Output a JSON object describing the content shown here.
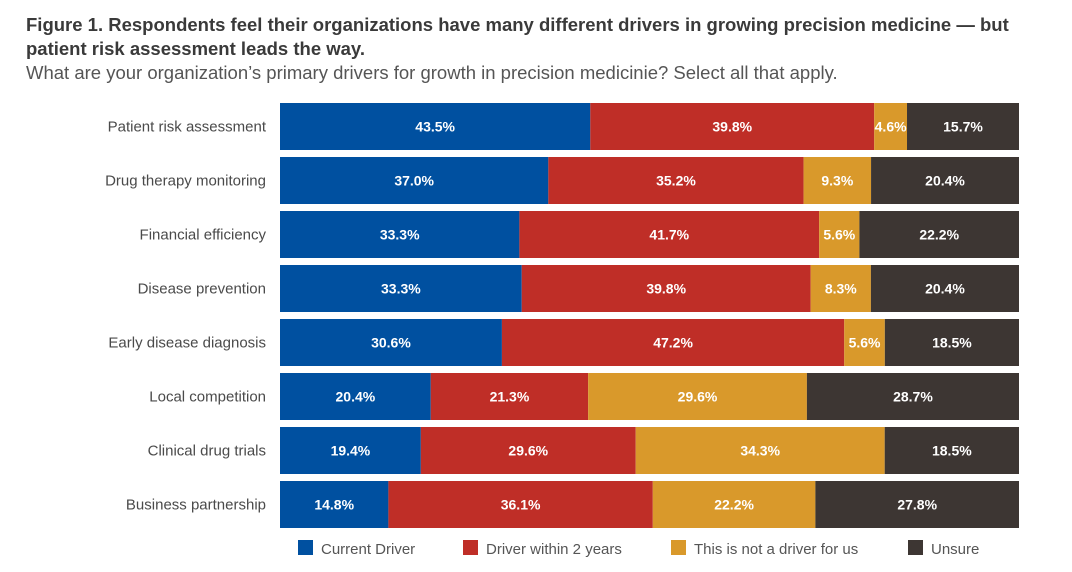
{
  "chart_data": {
    "type": "bar",
    "orientation": "horizontal",
    "stacked": true,
    "title": "Figure 1. Respondents feel their organizations have many different drivers in growing precision medicine — but patient risk assessment leads the way.",
    "subtitle": "What are your organization’s primary drivers for growth in precision medicinie? Select all that apply.",
    "xlabel": "",
    "ylabel": "",
    "xlim": [
      0,
      100
    ],
    "grid": false,
    "legend_position": "bottom",
    "categories": [
      "Patient risk assessment",
      "Drug therapy monitoring",
      "Financial efficiency",
      "Disease prevention",
      "Early disease diagnosis",
      "Local competition",
      "Clinical drug trials",
      "Business partnership"
    ],
    "series": [
      {
        "name": "Current Driver",
        "color": "#0050a0",
        "values": [
          43.5,
          37.0,
          33.3,
          33.3,
          30.6,
          20.4,
          19.4,
          14.8
        ]
      },
      {
        "name": "Driver within 2 years",
        "color": "#bf2e27",
        "values": [
          39.8,
          35.2,
          41.7,
          39.8,
          47.2,
          21.3,
          29.6,
          36.1
        ]
      },
      {
        "name": "This is not a driver for us",
        "color": "#d9992b",
        "values": [
          4.6,
          9.3,
          5.6,
          8.3,
          5.6,
          29.6,
          34.3,
          22.2
        ]
      },
      {
        "name": "Unsure",
        "color": "#3d3633",
        "values": [
          15.7,
          20.4,
          22.2,
          20.4,
          18.5,
          28.7,
          18.5,
          27.8
        ]
      }
    ]
  }
}
